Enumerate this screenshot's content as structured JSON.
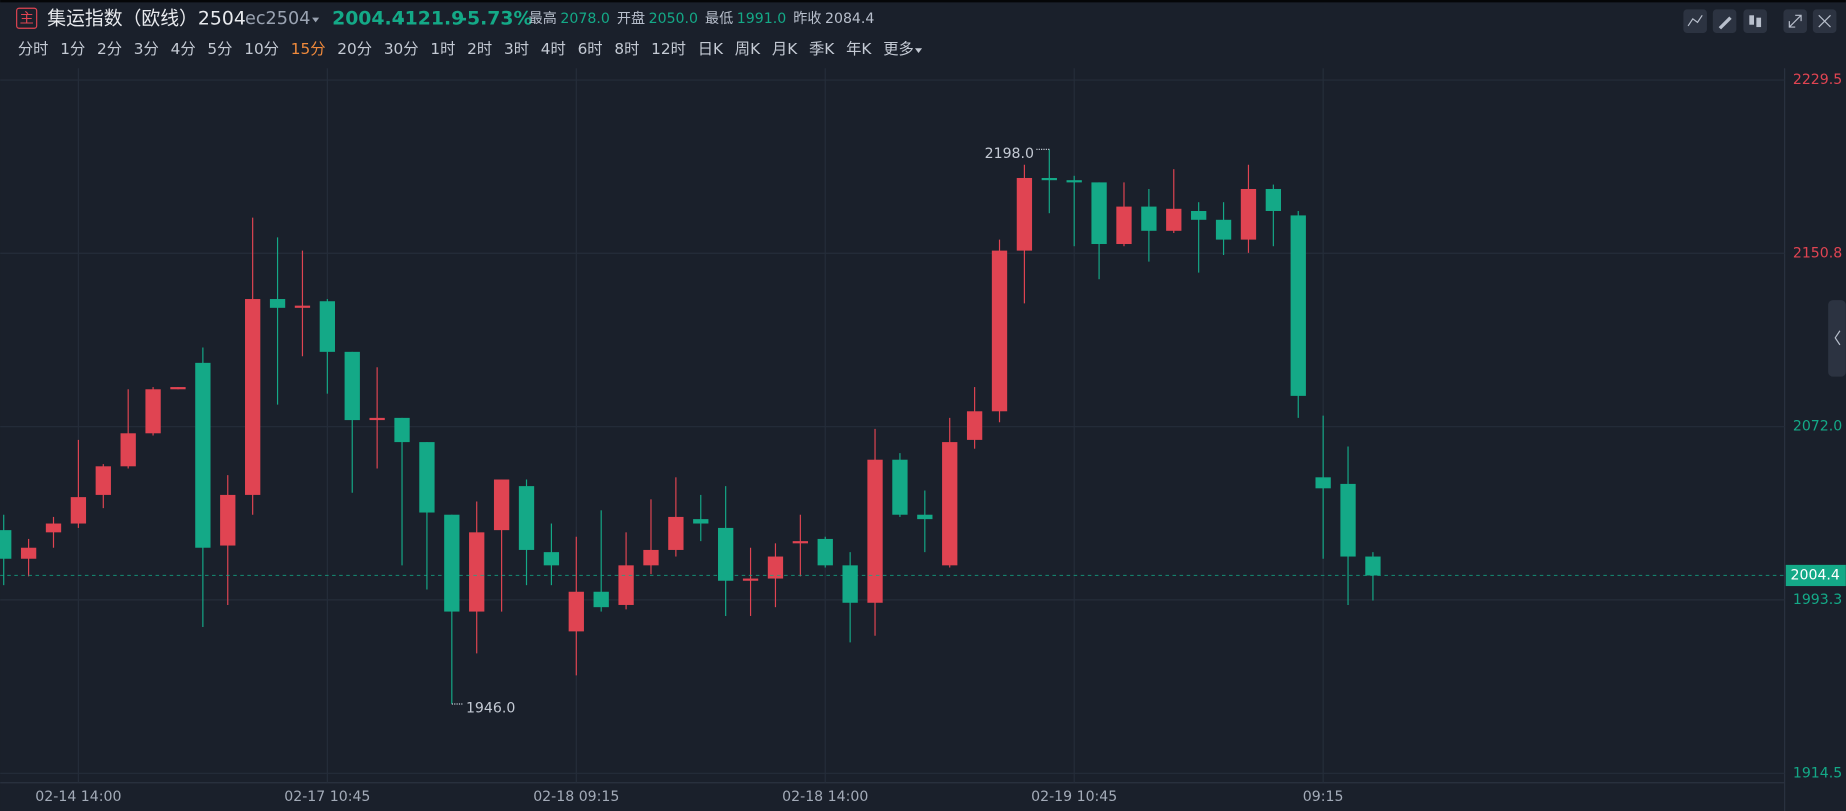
{
  "header": {
    "badge": "主",
    "title": "集运指数（欧线）2504",
    "contract": "ec2504",
    "price": "2004.4",
    "change": "-121.9",
    "change_pct": "-5.73%",
    "stats": [
      {
        "name": "最高",
        "value": "2078.0"
      },
      {
        "name": "开盘",
        "value": "2050.0"
      },
      {
        "name": "最低",
        "value": "1991.0"
      },
      {
        "name": "昨收",
        "value": "2084.4"
      }
    ]
  },
  "toolbar": {
    "periods": [
      "分时",
      "1分",
      "2分",
      "3分",
      "4分",
      "5分",
      "10分",
      "15分",
      "20分",
      "30分",
      "1时",
      "2时",
      "3时",
      "4时",
      "6时",
      "8时",
      "12时",
      "日K",
      "周K",
      "月K",
      "季K",
      "年K",
      "更多"
    ],
    "selected": 7
  },
  "chart_data": {
    "type": "candlestick",
    "up_color": "#e04452",
    "down_color": "#14a987",
    "categories": [
      null,
      null,
      null,
      "02-14 14:00",
      null,
      null,
      null,
      null,
      null,
      null,
      null,
      null,
      null,
      "02-17 10:45",
      null,
      null,
      null,
      null,
      null,
      null,
      null,
      null,
      null,
      "02-18 09:15",
      null,
      null,
      null,
      null,
      null,
      null,
      null,
      null,
      null,
      "02-18 14:00",
      null,
      null,
      null,
      null,
      null,
      null,
      null,
      null,
      null,
      "02-19 10:45",
      null,
      null,
      null,
      null,
      null,
      null,
      null,
      null,
      null,
      "09:15",
      null,
      null
    ],
    "open": [
      2025,
      2012,
      2024,
      2028,
      2041,
      2054,
      2069,
      2089,
      2101,
      2018,
      2041,
      2130,
      2126,
      2129,
      2106,
      2075,
      2076,
      2065,
      2032,
      1988,
      2025,
      2045,
      2015,
      1979,
      1997,
      1991,
      2009,
      2016,
      2030,
      2026,
      2002,
      2003,
      2019,
      2021,
      2009,
      1992,
      2057,
      2032,
      2009,
      2066,
      2079,
      2152,
      2185,
      2184,
      2183,
      2155,
      2172,
      2161,
      2170,
      2166,
      2157,
      2180,
      2168,
      2049,
      2046,
      2013
    ],
    "high": [
      2032,
      2021,
      2031,
      2066,
      2055,
      2089,
      2090,
      2090,
      2108,
      2050,
      2167,
      2158,
      2152,
      2130,
      2106,
      2099,
      2076,
      2065,
      2032,
      2038,
      2048,
      2048,
      2028,
      2022,
      2034,
      2024,
      2039,
      2049,
      2041,
      2045,
      2017,
      2019,
      2032,
      2022,
      2015,
      2071,
      2060,
      2043,
      2076,
      2090,
      2157,
      2191,
      2198,
      2186,
      2183,
      2183,
      2180,
      2189,
      2174,
      2174,
      2191,
      2182,
      2170,
      2077,
      2063,
      2015
    ],
    "low": [
      2000,
      2004,
      2017,
      2026,
      2035,
      2053,
      2068,
      2089,
      1981,
      1991,
      2032,
      2082,
      2104,
      2087,
      2042,
      2053,
      2009,
      1998,
      1946,
      1969,
      1988,
      2000,
      2000,
      1959,
      1988,
      1989,
      2005,
      2013,
      2020,
      1986,
      1986,
      1990,
      2004,
      2008,
      1974,
      1977,
      2031,
      2015,
      2008,
      2062,
      2074,
      2128,
      2169,
      2154,
      2139,
      2154,
      2147,
      2160,
      2142,
      2150,
      2151,
      2154,
      2076,
      2012,
      1991,
      1993
    ],
    "close": [
      2012,
      2017,
      2028,
      2040,
      2054,
      2069,
      2089,
      2090,
      2017,
      2041,
      2130,
      2126,
      2127,
      2106,
      2075,
      2076,
      2065,
      2033,
      1988,
      2024,
      2048,
      2016,
      2009,
      1997,
      1990,
      2009,
      2016,
      2031,
      2028,
      2002,
      2003,
      2013,
      2020,
      2009,
      1992,
      2057,
      2032,
      2030,
      2065,
      2079,
      2152,
      2185,
      2184,
      2183,
      2155,
      2172,
      2161,
      2171,
      2166,
      2157,
      2180,
      2170,
      2086,
      2044,
      2013,
      2004.4
    ],
    "ylim": [
      1914.5,
      2229.5
    ],
    "yticks": [
      2229.5,
      2150.8,
      {
        "value": 2072,
        "label": "2072.0"
      },
      1993.3,
      1914.5
    ],
    "grid": true,
    "last_price": 2004.4,
    "max_label": {
      "value": 2198,
      "label": "2198.0"
    },
    "min_label": {
      "value": 1946,
      "label": "1946.0"
    }
  }
}
